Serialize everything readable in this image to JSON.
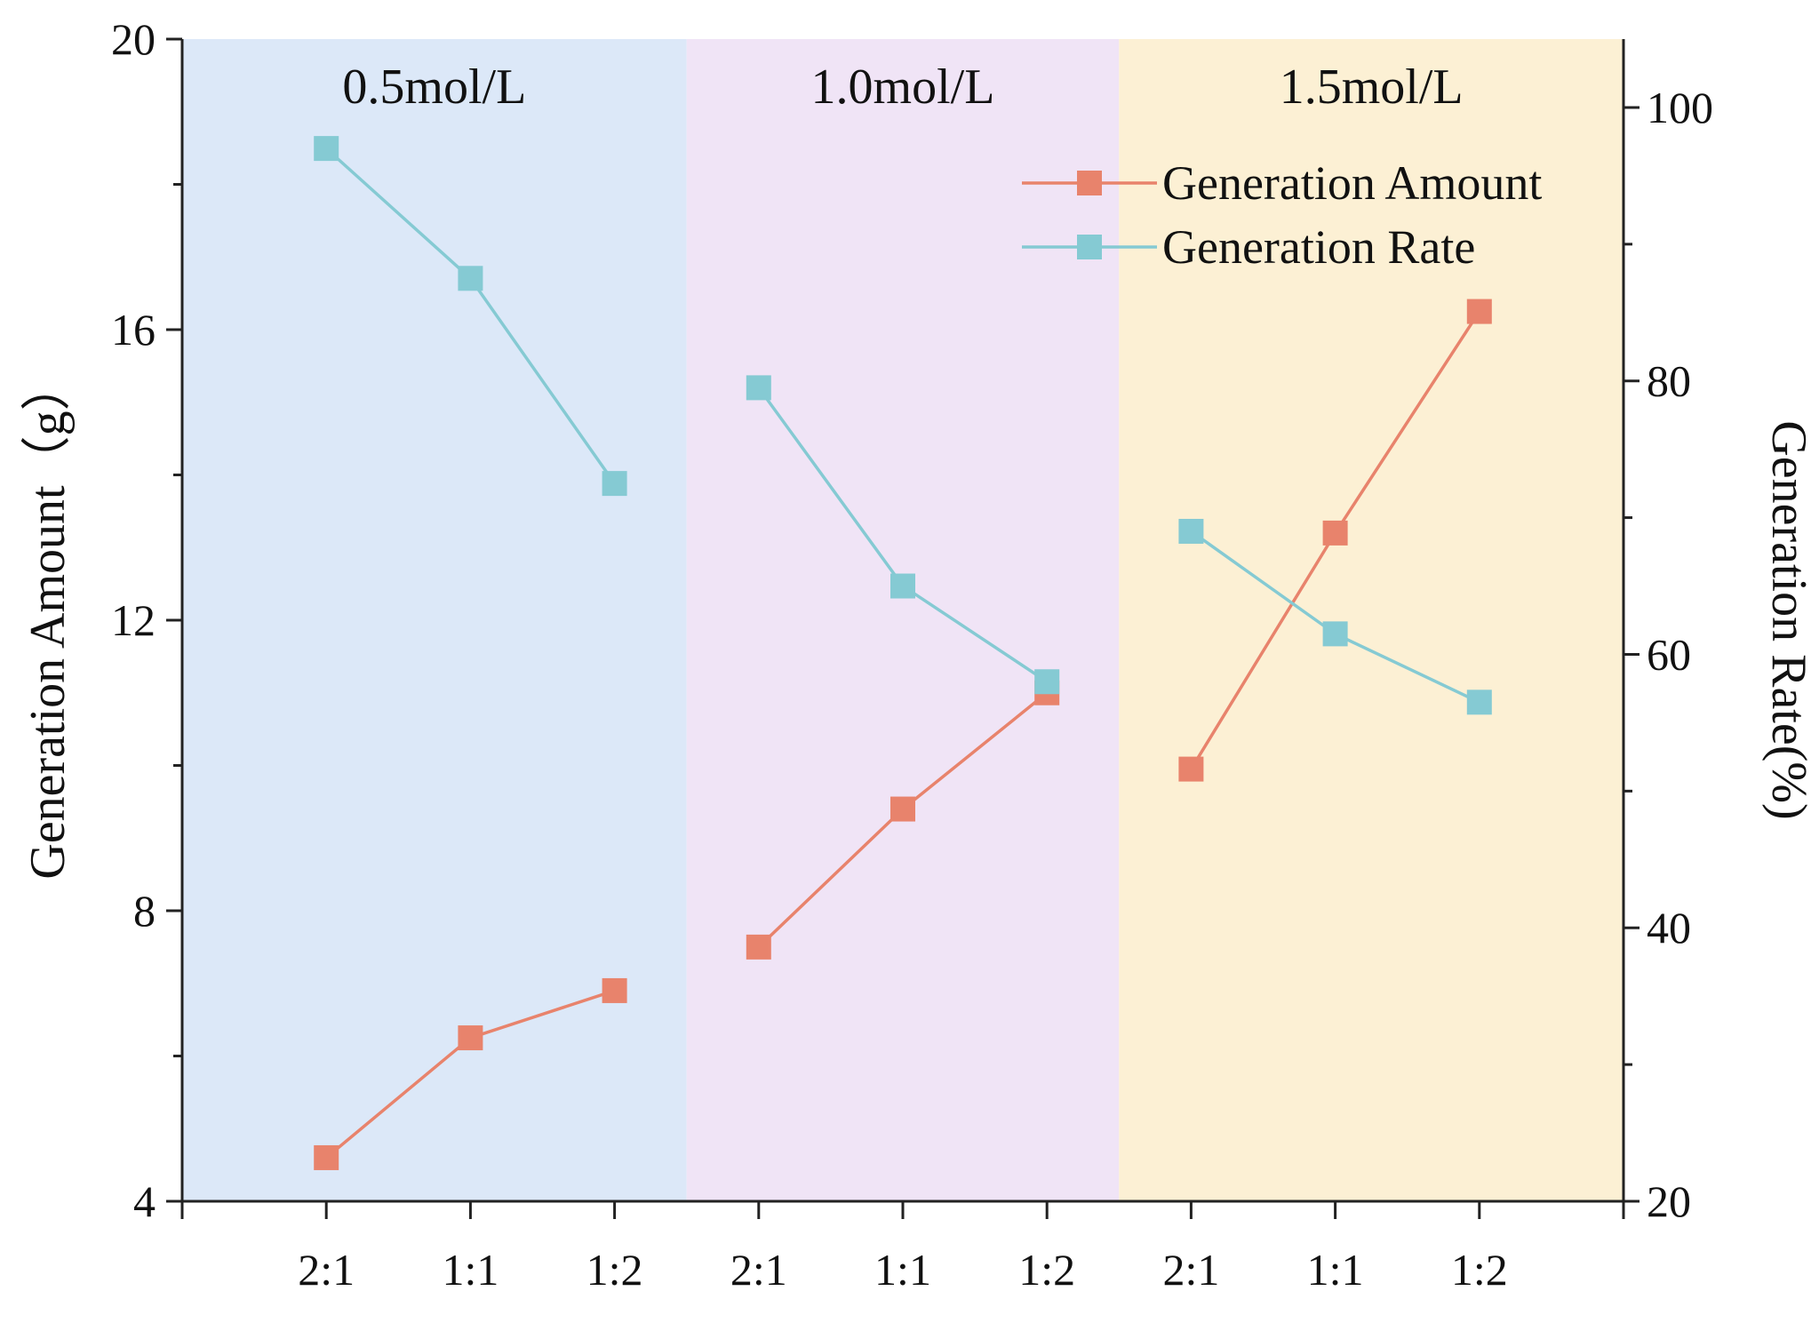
{
  "chart_data": {
    "type": "line",
    "title": "",
    "categories": [
      "2:1",
      "1:1",
      "1:2",
      "2:1",
      "1:1",
      "1:2",
      "2:1",
      "1:1",
      "1:2"
    ],
    "groups": [
      {
        "label": "0.5mol/L",
        "color": "#dce8f8"
      },
      {
        "label": "1.0mol/L",
        "color": "#f0e4f6"
      },
      {
        "label": "1.5mol/L",
        "color": "#fcf0d4"
      }
    ],
    "ylabel_left": "Generation Amount（g）",
    "ylabel_right": "Generation Rate(%)",
    "ylim_left": [
      4,
      20
    ],
    "yticks_left": [
      4,
      8,
      12,
      16,
      20
    ],
    "ylim_right": [
      20,
      105
    ],
    "yticks_right": [
      20,
      40,
      60,
      80,
      100
    ],
    "legend_position": "top-right",
    "series": [
      {
        "name": "Generation Amount",
        "axis": "left",
        "color": "#e8836c",
        "values": [
          4.6,
          6.25,
          6.9,
          7.5,
          9.4,
          11.0,
          9.95,
          13.2,
          16.25
        ]
      },
      {
        "name": "Generation Rate",
        "axis": "right",
        "color": "#85cad3",
        "values": [
          97.0,
          87.5,
          72.5,
          79.5,
          65.0,
          58.0,
          69.0,
          61.5,
          56.5
        ]
      }
    ]
  }
}
